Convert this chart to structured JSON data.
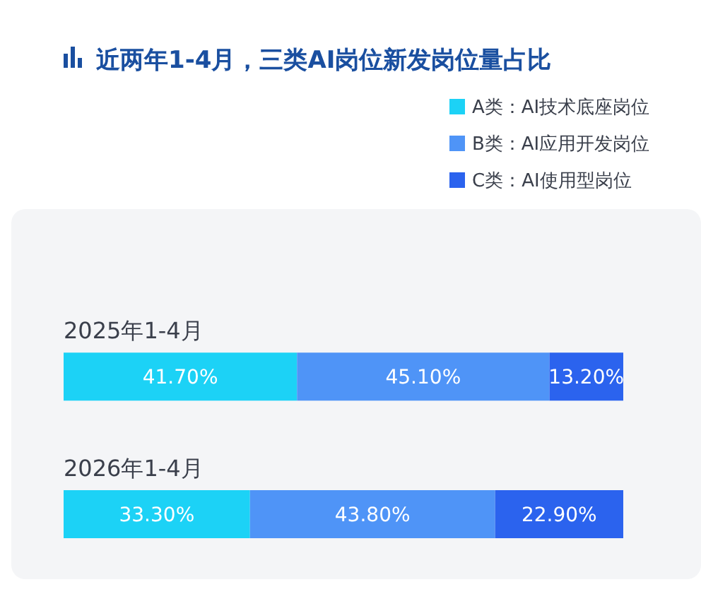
{
  "chart_data": {
    "type": "bar",
    "title": "近两年1-4月，三类AI岗位新发岗位量占比",
    "orientation": "horizontal",
    "stacked": true,
    "categories": [
      "2025年1-4月",
      "2026年1-4月"
    ],
    "xlim": [
      0,
      100
    ],
    "tick_labels": "y",
    "legend": "top right",
    "series": [
      {
        "name": "A类：AI技术底座岗位",
        "color": "#1cd2f6",
        "values": [
          41.7,
          33.3
        ],
        "value_labels": [
          "41.70%",
          "33.30%"
        ]
      },
      {
        "name": "B类：AI应用开发岗位",
        "color": "#4f94f7",
        "values": [
          45.1,
          43.8
        ],
        "value_labels": [
          "45.10%",
          "43.80%"
        ]
      },
      {
        "name": "C类：AI使用型岗位",
        "color": "#2b63ee",
        "values": [
          13.2,
          22.9
        ],
        "value_labels": [
          "13.20%",
          "22.90%"
        ]
      }
    ]
  }
}
